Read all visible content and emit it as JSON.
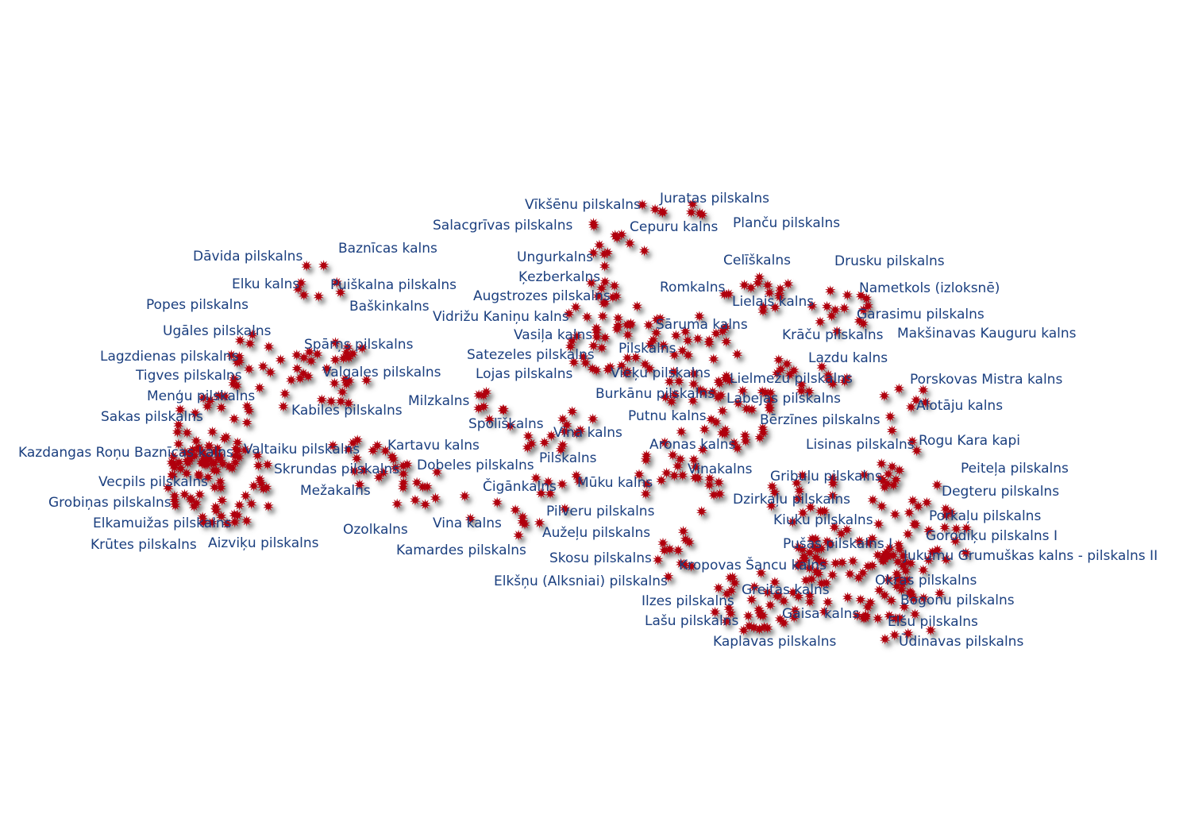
{
  "map": {
    "marker_color": "#b0000f",
    "marker_shadow_color": "#5a5a5a",
    "label_color": "#1b3f7f",
    "marker_icon": "red-star-marker-icon"
  },
  "labels": [
    "Vīkšēnu pilskalns",
    "Juratas pilskalns",
    "Salacgrīvas pilskalns",
    "Cepuru kalns",
    "Planču pilskalns",
    "Dāvida pilskalns",
    "Baznīcas kalns",
    "Ungurkalns",
    "Celīškalns",
    "Drusku pilskalns",
    "Elku kalns",
    "Puiškalna pilskalns",
    "Ķezberkalns",
    "Romkalns",
    "Nametkols (izloksnē)",
    "Popes pilskalns",
    "Baškinkalns",
    "Augstrozes pilskalns",
    "Lielais kalns",
    "Garasimu pilskalns",
    "Vidrižu Kaniņu kalns",
    "Sāruma kalns",
    "Ugāles pilskalns",
    "Vasiļa kalns",
    "Krāču pilskalns",
    "Makšinavas Kauguru kalns",
    "Spārņs pilskalns",
    "Pilskalns",
    "Lagzdienas pilskalns",
    "Satezeles pilskalns",
    "Lazdu kalns",
    "Tigves pilskalns",
    "Valgales pilskalns",
    "Lojas pilskalns",
    "Vieķu pilskalns",
    "Lielmežu pilskalns",
    "Porskovas Mistra kalns",
    "Menģu pilskalns",
    "Burkānu pilskalns",
    "Milzkalns",
    "Labejas pilskalns",
    "Alotāju kalns",
    "Kabiles pilskalns",
    "Sakas pilskalns",
    "Putnu kalns",
    "Bērzīnes pilskalns",
    "Spolīškalns",
    "Vina kalns",
    "Kartavu kalns",
    "Aronas kalns",
    "Rogu Kara kapi",
    "Lisinas pilskalns",
    "Kazdangas Roņu Baznīcas kalns",
    "Valtaiku pilskalns",
    "Pilskalns",
    "Dobeles pilskalns",
    "Peiteļa pilskalns",
    "Skrundas pilskalns",
    "Vinakalns",
    "Gribuļu pilskalns",
    "Vecpils pilskalns",
    "Čigānkalns",
    "Mūku kalns",
    "Degteru pilskalns",
    "Mežakalns",
    "Dzirkaļu pilskalns",
    "Grobiņas pilskalns",
    "Pilveru pilskalns",
    "Porkaļu pilskalns",
    "Kiuku pilskalns",
    "Elkamuižas pilskalns",
    "Vina kalns",
    "Ozolkalns",
    "Aužeļu pilskalns",
    "Gorodiķu pilskalns I",
    "Krūtes pilskalns",
    "Aizviķu pilskalns",
    "Pušas pilskalns I",
    "Kamardes pilskalns",
    "Jukumu Grumuškas kalns - pilskalns II",
    "Skosu pilskalns",
    "Kropovas Šancu kalns",
    "Elkšņu (Alksniai) pilskalns",
    "Okras pilskalns",
    "Greitas kalns",
    "Ilzes pilskalns",
    "Bogonu pilskalns",
    "Gaisa kalns",
    "Lašu pilskalns",
    "Elšu pilskalns",
    "Kaplavas pilskalns",
    "Ūdinavas pilskalns"
  ]
}
